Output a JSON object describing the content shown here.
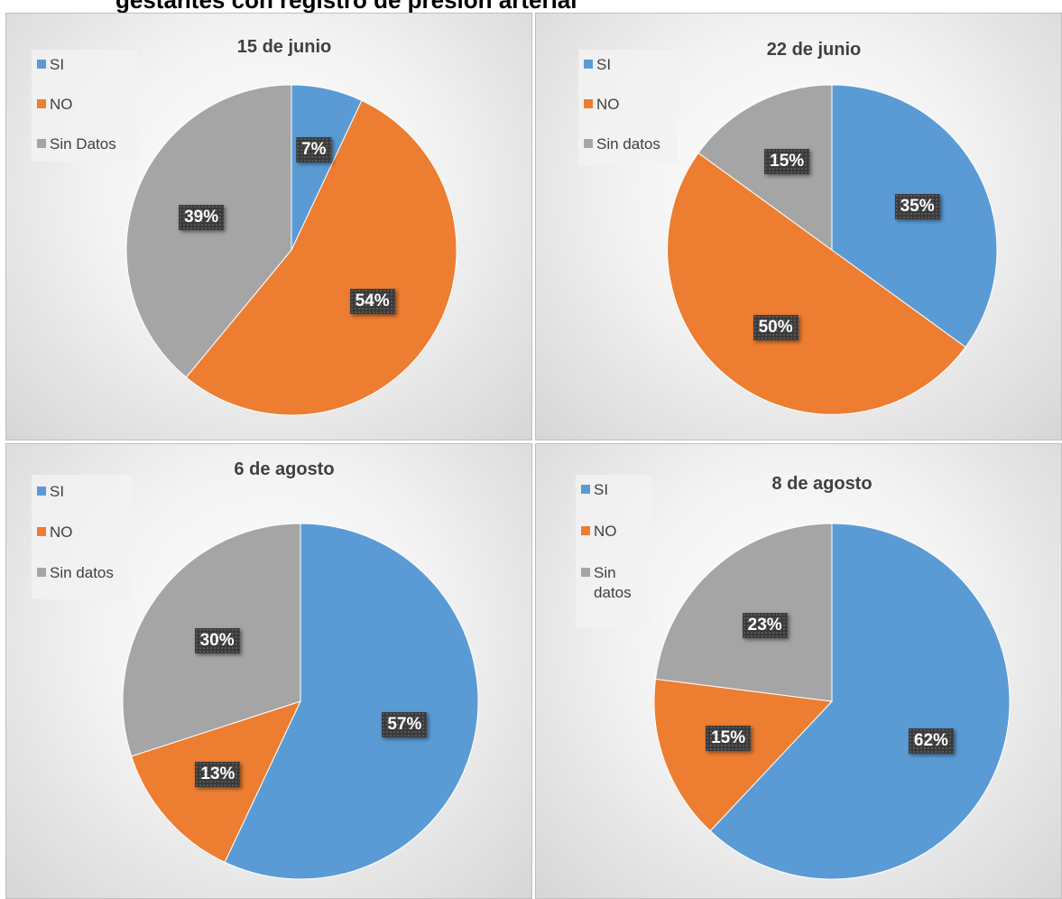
{
  "heading": "gestantes con registro de presión arterial",
  "colors": {
    "si": "#5b9bd5",
    "no": "#ed7d31",
    "sin_datos": "#a5a5a5"
  },
  "chart_data": [
    {
      "type": "pie",
      "title": "15 de junio",
      "legend_placement": "top-left",
      "slices": [
        {
          "label": "SI",
          "value": 7,
          "display": "7%"
        },
        {
          "label": "NO",
          "value": 54,
          "display": "54%"
        },
        {
          "label": "Sin Datos",
          "value": 39,
          "display": "39%"
        }
      ]
    },
    {
      "type": "pie",
      "title": "22 de junio",
      "legend_placement": "top-left",
      "slices": [
        {
          "label": "SI",
          "value": 35,
          "display": "35%"
        },
        {
          "label": "NO",
          "value": 50,
          "display": "50%"
        },
        {
          "label": "Sin datos",
          "value": 15,
          "display": "15%"
        }
      ]
    },
    {
      "type": "pie",
      "title": "6 de agosto",
      "legend_placement": "top-left",
      "slices": [
        {
          "label": "SI",
          "value": 57,
          "display": "57%"
        },
        {
          "label": "NO",
          "value": 13,
          "display": "13%"
        },
        {
          "label": "Sin datos",
          "value": 30,
          "display": "30%"
        }
      ]
    },
    {
      "type": "pie",
      "title": "8 de agosto",
      "legend_placement": "top-left",
      "slices": [
        {
          "label": "SI",
          "value": 62,
          "display": "62%"
        },
        {
          "label": "NO",
          "value": 15,
          "display": "15%"
        },
        {
          "label": "Sin datos",
          "value": 23,
          "display": "23%"
        }
      ]
    }
  ]
}
